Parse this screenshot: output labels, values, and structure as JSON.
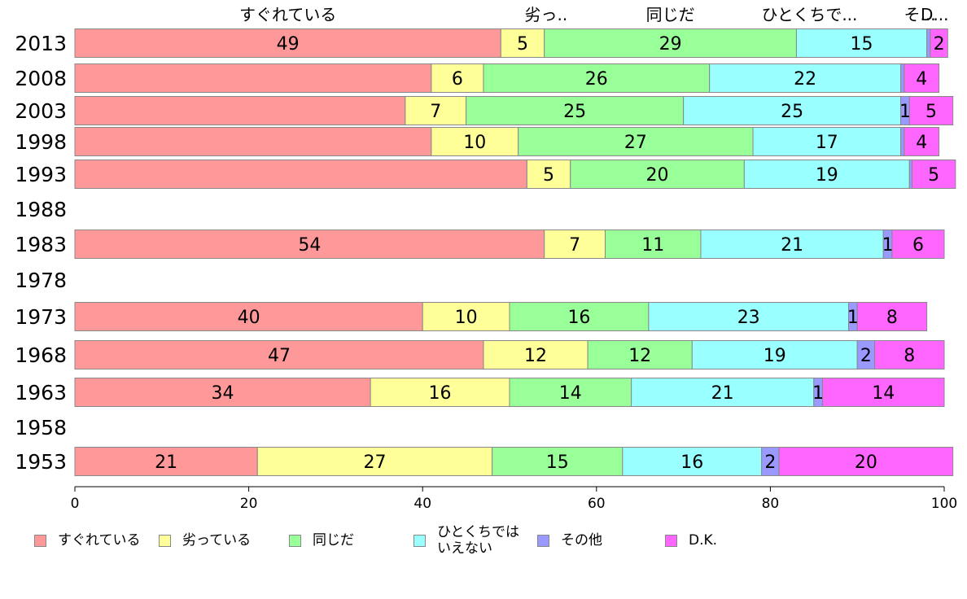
{
  "chart_data": {
    "type": "bar",
    "orientation": "horizontal",
    "stacked": true,
    "categories": [
      "2013",
      "2008",
      "2003",
      "1998",
      "1993",
      "1988",
      "1983",
      "1978",
      "1973",
      "1968",
      "1963",
      "1958",
      "1953"
    ],
    "series": [
      {
        "name": "すぐれている",
        "color": "#ff9999",
        "values": [
          49,
          41,
          38,
          41,
          52,
          null,
          54,
          null,
          40,
          47,
          34,
          null,
          21
        ]
      },
      {
        "name": "劣っている",
        "color": "#ffff99",
        "values": [
          5,
          6,
          7,
          10,
          5,
          null,
          7,
          null,
          10,
          12,
          16,
          null,
          27
        ]
      },
      {
        "name": "同じだ",
        "color": "#99ff99",
        "values": [
          29,
          26,
          25,
          27,
          20,
          null,
          11,
          null,
          16,
          12,
          14,
          null,
          15
        ]
      },
      {
        "name": "ひとくちでは\nいえない",
        "color": "#99ffff",
        "values": [
          15,
          22,
          25,
          17,
          19,
          null,
          21,
          null,
          23,
          19,
          21,
          null,
          16
        ]
      },
      {
        "name": "その他",
        "color": "#9999ff",
        "values": [
          0.4,
          0.4,
          1,
          0.4,
          0.3,
          null,
          1,
          null,
          1,
          2,
          1,
          null,
          2
        ]
      },
      {
        "name": "D.K.",
        "color": "#ff66ff",
        "values": [
          2,
          4,
          5,
          4,
          5,
          null,
          6,
          null,
          8,
          8,
          14,
          null,
          20
        ]
      }
    ],
    "value_labels": [
      [
        "49",
        "",
        "",
        "",
        "",
        "",
        "54",
        "",
        "40",
        "47",
        "34",
        "",
        "21"
      ],
      [
        "5",
        "6",
        "7",
        "10",
        "5",
        "",
        "7",
        "",
        "10",
        "12",
        "16",
        "",
        "27"
      ],
      [
        "29",
        "26",
        "25",
        "27",
        "20",
        "",
        "11",
        "",
        "16",
        "12",
        "14",
        "",
        "15"
      ],
      [
        "15",
        "22",
        "25",
        "17",
        "19",
        "",
        "21",
        "",
        "23",
        "19",
        "21",
        "",
        "16"
      ],
      [
        "",
        "",
        "1",
        "",
        "",
        "",
        "1",
        "",
        "1",
        "2",
        "1",
        "",
        "2"
      ],
      [
        "2",
        "4",
        "5",
        "4",
        "5",
        "",
        "6",
        "",
        "8",
        "8",
        "14",
        "",
        "20"
      ]
    ],
    "top_labels": [
      "すぐれている",
      "劣っ..",
      "同じだ",
      "ひとくちで...",
      "そ...",
      "D..."
    ],
    "xlim": [
      0,
      100
    ],
    "xticks": [
      "0",
      "20",
      "40",
      "60",
      "80",
      "100"
    ],
    "legend_position": "bottom"
  }
}
